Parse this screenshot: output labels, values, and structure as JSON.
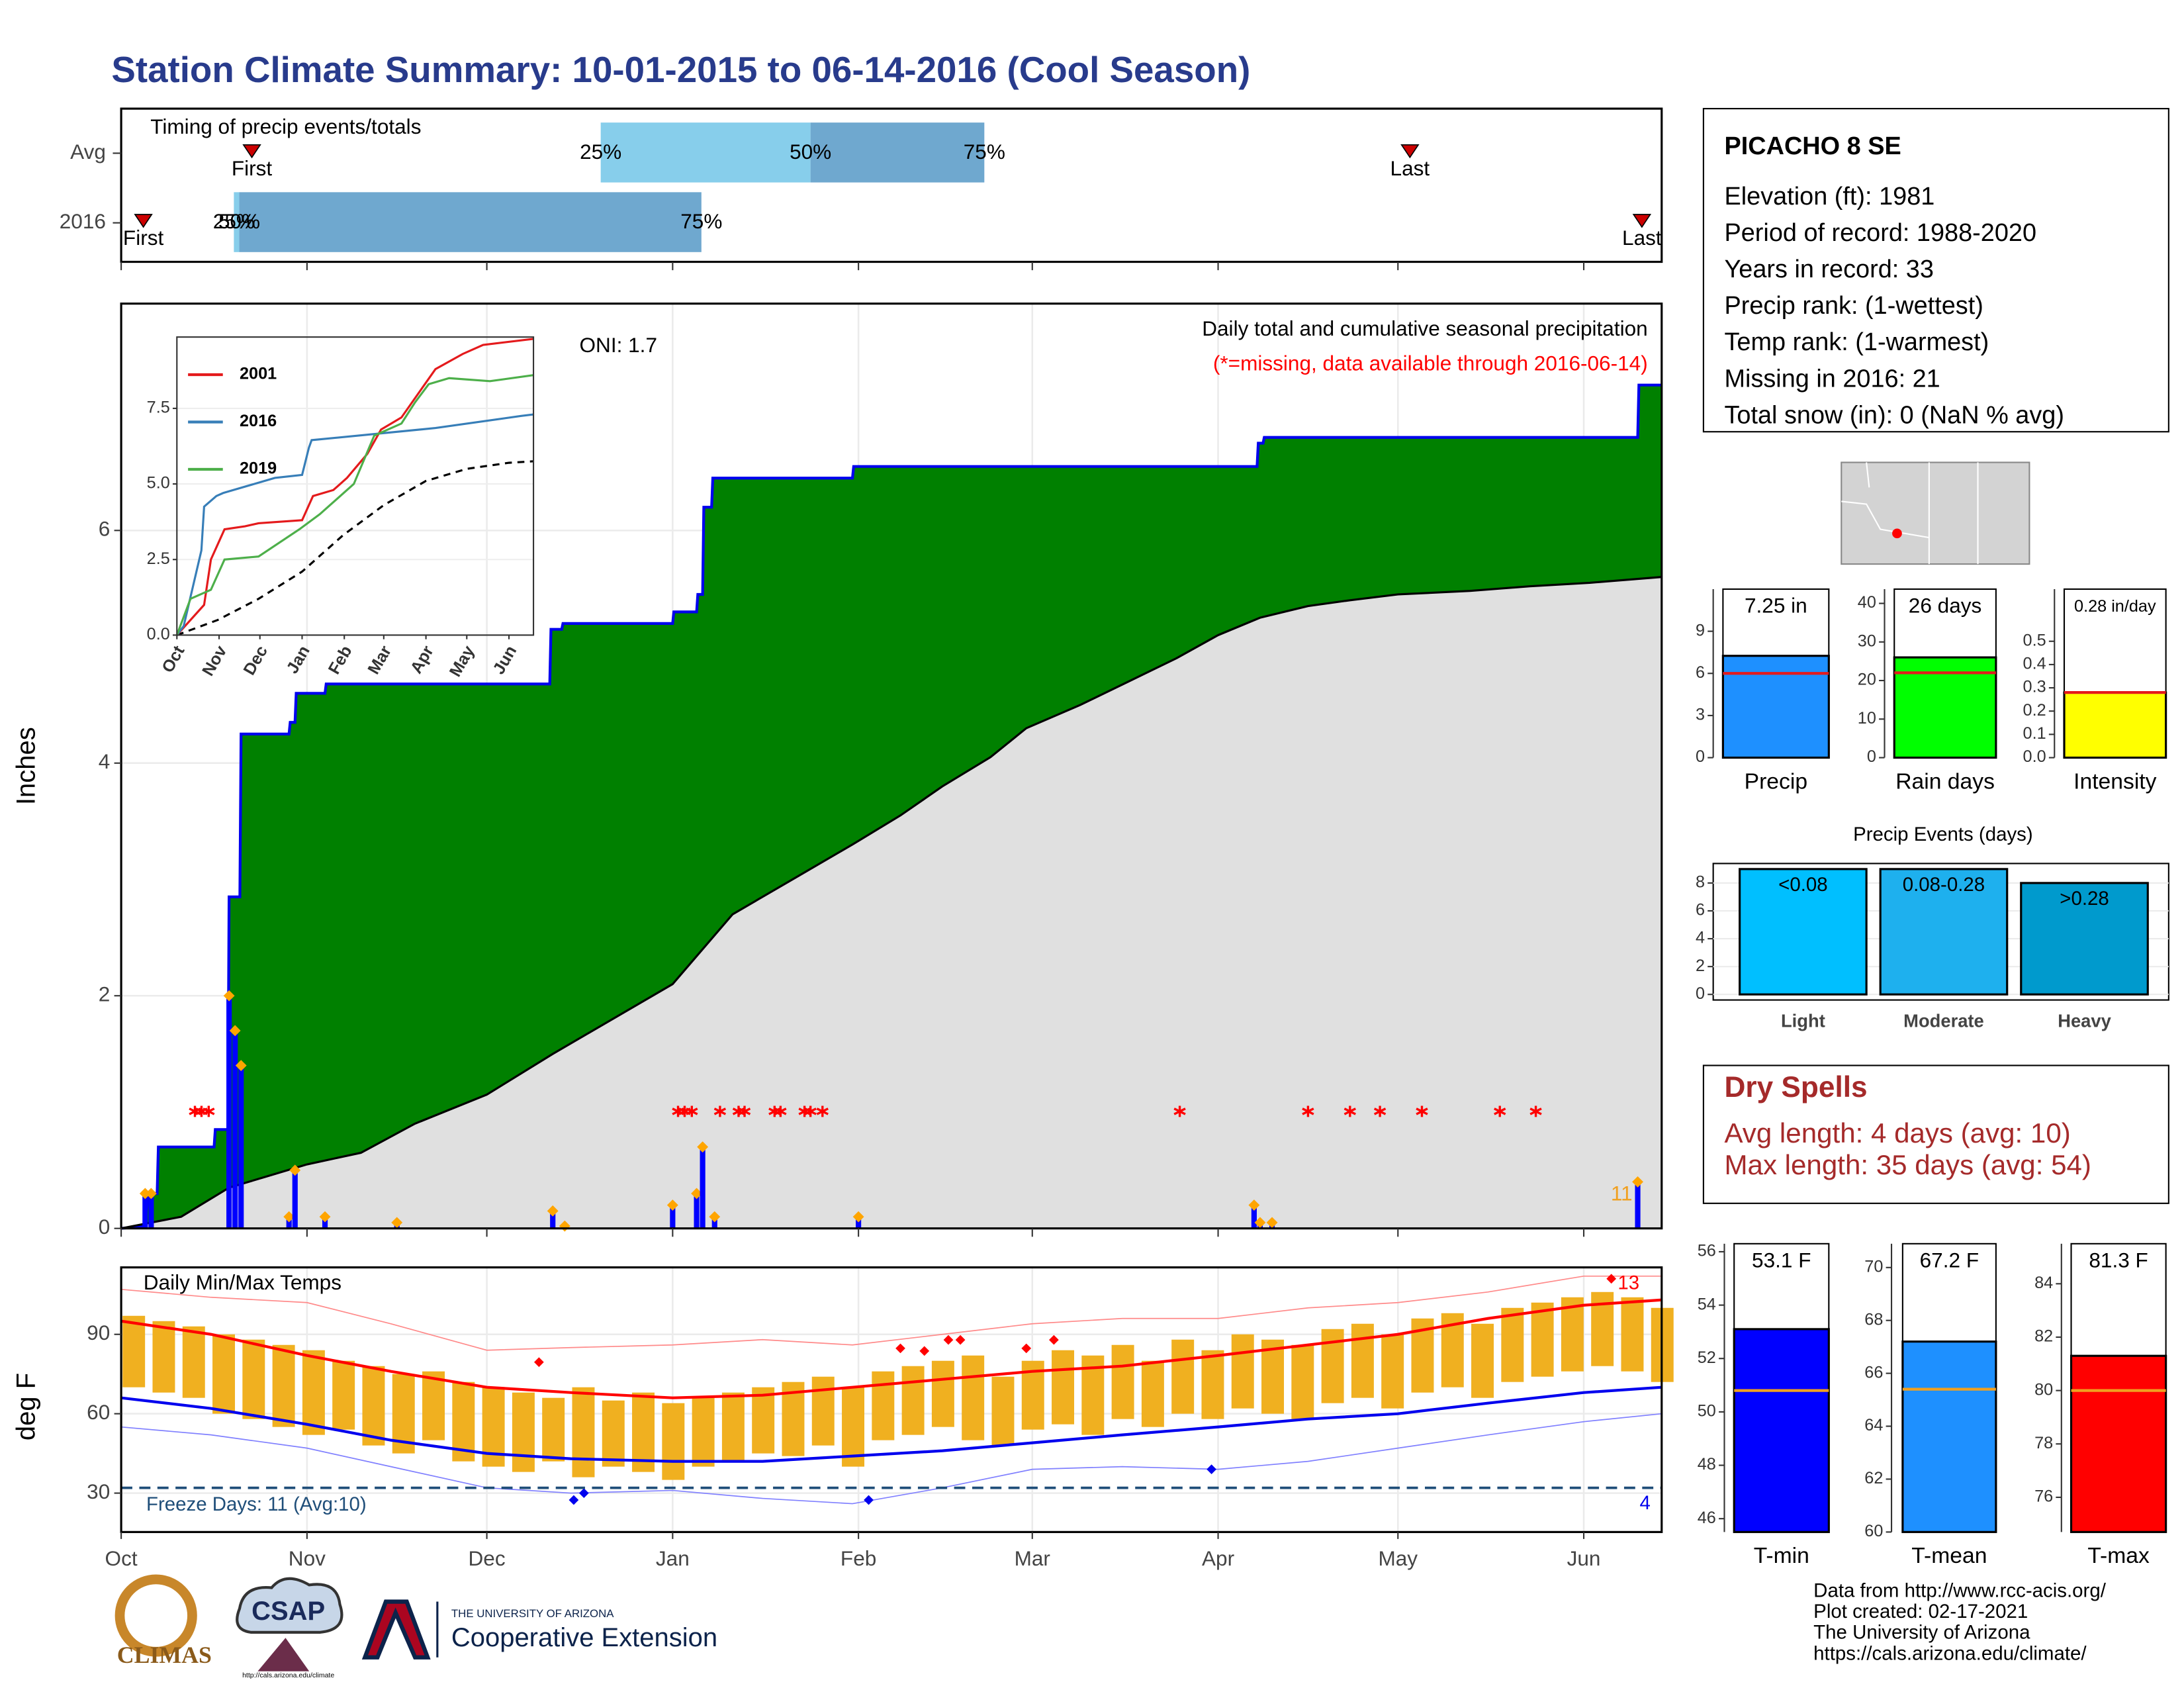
{
  "title": "Station Climate Summary: 10-01-2015 to 06-14-2016 (Cool Season)",
  "station": {
    "name": "PICACHO 8 SE",
    "lines": [
      "Elevation (ft): 1981",
      "Period of record: 1988-2020",
      "Years in record: 33",
      "Precip rank:  (1-wettest)",
      "Temp rank:  (1-warmest)",
      "Missing in 2016: 21",
      "Total snow (in): 0 (NaN % avg)"
    ]
  },
  "dry_spells": {
    "title": "Dry Spells",
    "lines": [
      "Avg length: 4 days (avg: 10)",
      "Max length: 35 days (avg: 54)"
    ]
  },
  "footer": {
    "logos": [
      "CLIMAS",
      "CSAP",
      "http://cals.arizona.edu/climate",
      "THE UNIVERSITY OF ARIZONA",
      "Cooperative Extension"
    ],
    "credits": [
      "Data from http://www.rcc-acis.org/",
      "Plot created: 02-17-2021",
      "The University of Arizona",
      "https://cals.arizona.edu/climate/"
    ]
  },
  "chart_data": [
    {
      "type": "timeline",
      "title": "Timing of precip events/totals",
      "xlim": [
        0,
        257
      ],
      "categories": [
        "Avg",
        "2016"
      ],
      "first": [
        21.8,
        3.7
      ],
      "p25": [
        80,
        18.8
      ],
      "p50": [
        115,
        19.7
      ],
      "p75": [
        144,
        96.8
      ],
      "last": [
        215,
        253.7
      ],
      "labels": {
        "first": "First",
        "last": "Last",
        "p25": "25%",
        "p50": "50%",
        "p75": "75%"
      },
      "colors": [
        "#87ceeb",
        "#6fa8cf"
      ],
      "marker_color": "#cc0000"
    },
    {
      "type": "area",
      "title": "Daily total and cumulative seasonal precipitation",
      "subtitle": "(*=missing, data available through 2016-06-14)",
      "annotation": "ONI: 1.7",
      "ylabel": "Inches",
      "count_label": "11",
      "xlim": [
        0,
        257
      ],
      "ylim": [
        0,
        7.95
      ],
      "yticks": [
        0,
        2,
        4,
        6
      ],
      "grid": true,
      "cumulative": {
        "color": "#0000ee",
        "fill": "#008000",
        "x": [
          0,
          4,
          4.5,
          6,
          6.2,
          15.5,
          15.7,
          17.8,
          18,
          19.8,
          20,
          28,
          28.2,
          29,
          29.2,
          34,
          34.2,
          71.5,
          71.7,
          73.5,
          73.7,
          92,
          92.2,
          96,
          96.2,
          97,
          97.2,
          98.5,
          98.7,
          122,
          122.2,
          189.5,
          189.7,
          190.5,
          190.7,
          253,
          253.2,
          257
        ],
        "values": [
          0,
          0.02,
          0.3,
          0.3,
          0.7,
          0.7,
          0.85,
          0.85,
          2.85,
          2.85,
          4.25,
          4.25,
          4.35,
          4.35,
          4.6,
          4.6,
          4.68,
          4.68,
          5.15,
          5.15,
          5.2,
          5.2,
          5.3,
          5.3,
          5.45,
          5.45,
          6.2,
          6.2,
          6.45,
          6.45,
          6.55,
          6.55,
          6.75,
          6.75,
          6.8,
          6.8,
          7.25,
          7.25
        ]
      },
      "average": {
        "color": "#000000",
        "fill": "#e0e0e0",
        "x": [
          0,
          10,
          18,
          31,
          40,
          49,
          61,
          72,
          82,
          92,
          102,
          112,
          122,
          130,
          137,
          145,
          151,
          160,
          168,
          176,
          183,
          190,
          198,
          205,
          213,
          225,
          235,
          245,
          257
        ],
        "values": [
          0,
          0.1,
          0.35,
          0.55,
          0.65,
          0.9,
          1.15,
          1.5,
          1.8,
          2.1,
          2.7,
          3.0,
          3.3,
          3.55,
          3.8,
          4.05,
          4.3,
          4.5,
          4.7,
          4.9,
          5.1,
          5.25,
          5.35,
          5.4,
          5.45,
          5.48,
          5.52,
          5.55,
          5.6
        ]
      },
      "daily": {
        "color": "#0000ff",
        "marker_color": "#ffa500",
        "x": [
          4,
          5,
          18,
          19,
          20,
          28,
          29,
          34,
          46,
          72,
          74,
          92,
          96,
          97,
          99,
          123,
          189,
          190,
          192,
          253
        ],
        "values": [
          0.3,
          0.3,
          2.0,
          1.7,
          1.4,
          0.1,
          0.5,
          0.1,
          0.05,
          0.15,
          0.02,
          0.2,
          0.3,
          0.7,
          0.1,
          0.1,
          0.2,
          0.05,
          0.05,
          0.4
        ]
      },
      "missing_x": [
        12.3,
        13.4,
        14.6,
        92.9,
        94,
        95.2,
        99.9,
        103,
        104,
        109,
        110,
        114,
        115,
        117,
        176.6,
        198,
        205,
        210,
        217,
        230,
        236
      ],
      "missing_color": "#ff0000"
    },
    {
      "type": "line",
      "xlim": [
        0,
        262
      ],
      "ylim": [
        0,
        9.86
      ],
      "yticks": [
        {
          "value": 0,
          "label": "0.0"
        },
        2.5,
        {
          "value": 5,
          "label": "5.0"
        },
        7.5
      ],
      "xticks": [
        {
          "value": 0,
          "label": "Oct"
        },
        {
          "value": 31,
          "label": "Nov"
        },
        {
          "value": 61,
          "label": "Dec"
        },
        {
          "value": 92,
          "label": "Jan"
        },
        {
          "value": 123,
          "label": "Feb"
        },
        {
          "value": 152,
          "label": "Mar"
        },
        {
          "value": 183,
          "label": "Apr"
        },
        {
          "value": 213,
          "label": "May"
        },
        {
          "value": 244,
          "label": "Jun"
        }
      ],
      "series": [
        {
          "name": "2001",
          "color": "#e41a1c",
          "x": [
            0,
            20,
            25,
            35,
            50,
            60,
            92,
            100,
            115,
            125,
            140,
            150,
            165,
            190,
            210,
            225,
            262
          ],
          "values": [
            0,
            1,
            2.5,
            3.5,
            3.6,
            3.7,
            3.8,
            4.6,
            4.8,
            5.2,
            6.0,
            6.8,
            7.2,
            8.8,
            9.3,
            9.6,
            9.8
          ]
        },
        {
          "name": "2016",
          "color": "#377eb8",
          "x": [
            0,
            5,
            18,
            20,
            29,
            34,
            72,
            92,
            97,
            99,
            122,
            190,
            253,
            262
          ],
          "values": [
            0,
            0.3,
            2.8,
            4.25,
            4.6,
            4.7,
            5.2,
            5.3,
            6.2,
            6.45,
            6.55,
            6.85,
            7.25,
            7.3
          ]
        },
        {
          "name": "2019",
          "color": "#4daf4a",
          "x": [
            0,
            10,
            25,
            35,
            60,
            90,
            105,
            130,
            145,
            165,
            175,
            185,
            200,
            230,
            262
          ],
          "values": [
            0,
            1.2,
            1.5,
            2.5,
            2.6,
            3.5,
            4.0,
            5.0,
            6.6,
            7.0,
            7.7,
            8.3,
            8.5,
            8.4,
            8.6
          ]
        }
      ],
      "average": {
        "color": "#000000",
        "x": [
          0,
          30,
          60,
          92,
          122,
          152,
          183,
          213,
          244,
          262
        ],
        "values": [
          0,
          0.5,
          1.2,
          2.1,
          3.3,
          4.3,
          5.1,
          5.5,
          5.7,
          5.75
        ]
      }
    },
    {
      "type": "range",
      "title": "Daily Min/Max Temps",
      "ylabel": "deg F",
      "xlim": [
        0,
        257
      ],
      "ylim": [
        15.3,
        115.3
      ],
      "yticks": [
        30,
        60,
        90
      ],
      "grid": true,
      "xticks": [
        {
          "value": 0,
          "label": "Oct"
        },
        {
          "value": 31,
          "label": "Nov"
        },
        {
          "value": 61,
          "label": "Dec"
        },
        {
          "value": 92,
          "label": "Jan"
        },
        {
          "value": 123,
          "label": "Feb"
        },
        {
          "value": 152,
          "label": "Mar"
        },
        {
          "value": 183,
          "label": "Apr"
        },
        {
          "value": 213,
          "label": "May"
        },
        {
          "value": 244,
          "label": "Jun"
        }
      ],
      "x": [
        0,
        5,
        10,
        15,
        20,
        25,
        30,
        35,
        40,
        45,
        50,
        55,
        60,
        65,
        70,
        75,
        80,
        85,
        90,
        95,
        100,
        105,
        110,
        115,
        120,
        125,
        130,
        135,
        140,
        145,
        150,
        155,
        160,
        165,
        170,
        175,
        180,
        185,
        190,
        195,
        200,
        205,
        210,
        215,
        220,
        225,
        230,
        235,
        240,
        245,
        250,
        255
      ],
      "max": [
        97,
        95,
        93,
        90,
        88,
        86,
        84,
        80,
        78,
        75,
        76,
        72,
        70,
        68,
        66,
        70,
        65,
        68,
        64,
        66,
        68,
        70,
        72,
        74,
        70,
        76,
        78,
        80,
        82,
        74,
        80,
        84,
        82,
        86,
        80,
        88,
        84,
        90,
        88,
        86,
        92,
        94,
        90,
        96,
        98,
        94,
        100,
        102,
        104,
        106,
        104,
        100
      ],
      "min": [
        70,
        68,
        66,
        60,
        58,
        55,
        52,
        54,
        48,
        45,
        50,
        42,
        40,
        38,
        42,
        36,
        40,
        38,
        35,
        40,
        42,
        45,
        44,
        48,
        40,
        50,
        52,
        55,
        50,
        48,
        54,
        56,
        52,
        58,
        55,
        60,
        58,
        62,
        60,
        58,
        64,
        66,
        62,
        68,
        70,
        66,
        72,
        74,
        76,
        78,
        76,
        72
      ],
      "bar_color": "#f0b020",
      "series": [
        {
          "color": "#ff0000",
          "width": 2,
          "x": [
            0,
            15,
            31,
            45,
            61,
            75,
            92,
            107,
            122,
            137,
            152,
            167,
            183,
            198,
            213,
            228,
            244,
            257
          ],
          "values": [
            95,
            90,
            82,
            76,
            70,
            68,
            66,
            67,
            70,
            73,
            76,
            78,
            82,
            86,
            90,
            96,
            101,
            103
          ]
        },
        {
          "color": "#0000ee",
          "width": 2,
          "x": [
            0,
            15,
            31,
            45,
            61,
            75,
            92,
            107,
            122,
            137,
            152,
            167,
            183,
            198,
            213,
            228,
            244,
            257
          ],
          "values": [
            66,
            62,
            56,
            50,
            45,
            43,
            42,
            42,
            44,
            46,
            49,
            52,
            55,
            58,
            60,
            64,
            68,
            70
          ]
        },
        {
          "color": "#ff8a8a",
          "width": 0.8,
          "x": [
            0,
            15,
            31,
            45,
            61,
            75,
            92,
            107,
            122,
            137,
            152,
            167,
            183,
            198,
            213,
            228,
            244,
            257
          ],
          "values": [
            107,
            104,
            102,
            94,
            84,
            85,
            86,
            88,
            86,
            90,
            94,
            96,
            96,
            100,
            102,
            106,
            112,
            112
          ]
        },
        {
          "color": "#8080ff",
          "width": 0.8,
          "x": [
            0,
            15,
            31,
            45,
            61,
            75,
            92,
            107,
            122,
            137,
            152,
            167,
            183,
            198,
            213,
            228,
            244,
            257
          ],
          "values": [
            55,
            52,
            47,
            40,
            32,
            30,
            31,
            28,
            26,
            32,
            39,
            40,
            39,
            42,
            47,
            52,
            57,
            60
          ]
        }
      ],
      "record_highs": {
        "color": "#ff0000",
        "x": [
          69.7,
          130,
          134,
          138,
          140,
          151,
          155.6,
          248.6
        ],
        "values": [
          79.5,
          84.7,
          83.7,
          87.9,
          87.9,
          84.7,
          87.9,
          111
        ]
      },
      "record_lows": {
        "color": "#0000ee",
        "x": [
          75.5,
          77.2,
          124.7,
          181.9
        ],
        "values": [
          27.4,
          30,
          27.4,
          39
        ]
      },
      "freeze_line": 32,
      "freeze_color": "#1f4e79",
      "freeze_label": "Freeze Days: 11 (Avg:10)",
      "low_count": "4",
      "high_count": "13"
    },
    {
      "type": "bar",
      "categories": [
        "Precip"
      ],
      "values": [
        7.25
      ],
      "value_labels": [
        "7.25 in"
      ],
      "average": [
        6.0
      ],
      "color": "#1e90ff",
      "avg_color": "#e41a1c",
      "ylim": [
        0,
        12
      ],
      "yticks": [
        0,
        3,
        6,
        9
      ]
    },
    {
      "type": "bar",
      "categories": [
        "Rain days"
      ],
      "values": [
        26
      ],
      "value_labels": [
        "26 days"
      ],
      "average": [
        22
      ],
      "color": "#00ff00",
      "avg_color": "#e41a1c",
      "ylim": [
        0,
        43.7
      ],
      "yticks": [
        0,
        10,
        20,
        30,
        40
      ]
    },
    {
      "type": "bar",
      "categories": [
        "Intensity"
      ],
      "values": [
        0.28
      ],
      "value_labels": [
        "0.28 in/day"
      ],
      "average": [
        0.28
      ],
      "color": "#ffff00",
      "avg_color": "#e41a1c",
      "ylim": [
        0,
        0.724
      ],
      "yticks": [
        {
          "value": 0,
          "label": "0.0"
        },
        0.1,
        0.2,
        0.3,
        0.4,
        0.5
      ]
    },
    {
      "type": "bar",
      "title": "Precip Events (days)",
      "categories": [
        "Light",
        "Moderate",
        "Heavy"
      ],
      "values": [
        9,
        9,
        8
      ],
      "ranges": [
        "<0.08",
        "0.08-0.28",
        ">0.28"
      ],
      "colors": [
        "#00bfff",
        "#1eb0ee",
        "#009acd"
      ],
      "ylim": [
        0,
        9.4
      ],
      "yticks": [
        0,
        2,
        4,
        6,
        8
      ]
    },
    {
      "type": "bar",
      "categories": [
        "T-min"
      ],
      "values": [
        53.1
      ],
      "value_labels": [
        "53.1 F"
      ],
      "average": [
        50.8
      ],
      "color": "#0000ff",
      "avg_color": "#f0a020",
      "ylim": [
        45.5,
        56.3
      ],
      "yticks": [
        46,
        48,
        50,
        52,
        54,
        56
      ]
    },
    {
      "type": "bar",
      "categories": [
        "T-mean"
      ],
      "values": [
        67.2
      ],
      "value_labels": [
        "67.2 F"
      ],
      "average": [
        65.4
      ],
      "color": "#1e90ff",
      "avg_color": "#f0a020",
      "ylim": [
        60,
        70.9
      ],
      "yticks": [
        60,
        62,
        64,
        66,
        68,
        70
      ]
    },
    {
      "type": "bar",
      "categories": [
        "T-max"
      ],
      "values": [
        81.3
      ],
      "value_labels": [
        "81.3 F"
      ],
      "average": [
        80
      ],
      "color": "#ff0000",
      "avg_color": "#f0a020",
      "ylim": [
        74.7,
        85.5
      ],
      "yticks": [
        76,
        78,
        80,
        82,
        84
      ]
    }
  ]
}
